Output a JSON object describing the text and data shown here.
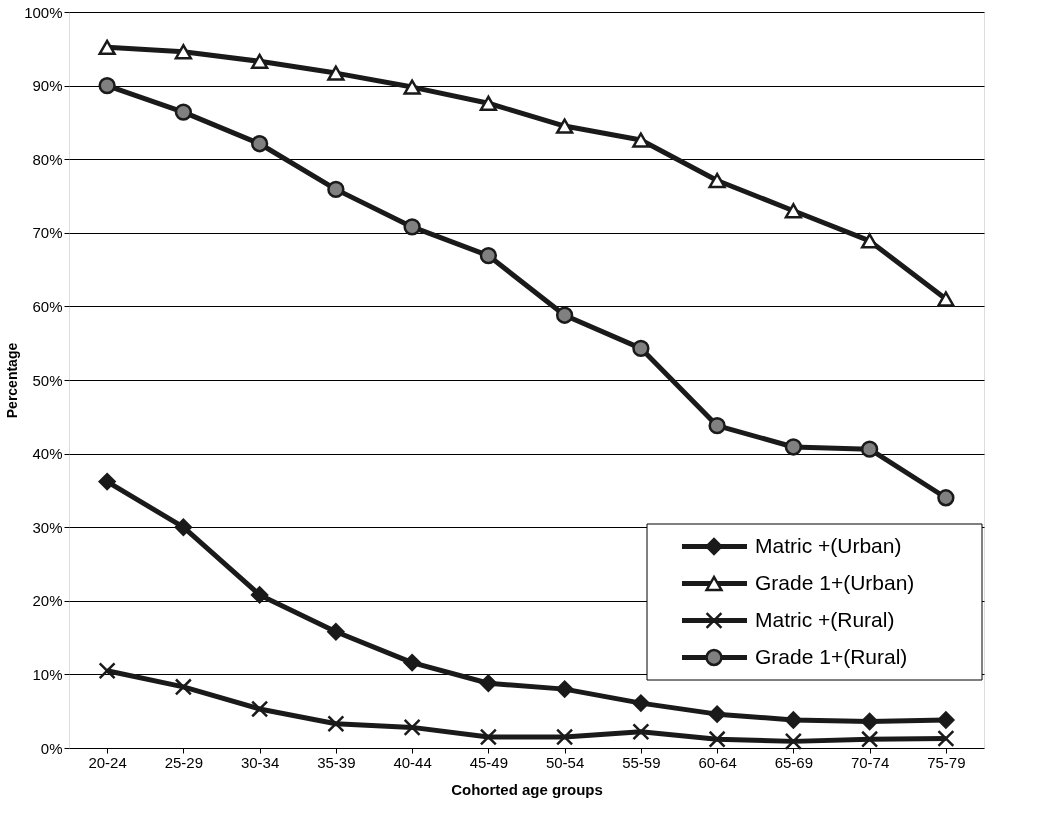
{
  "chart_data": {
    "type": "line",
    "xlabel": "Cohorted age groups",
    "ylabel": "Percentage",
    "categories": [
      "20-24",
      "25-29",
      "30-34",
      "35-39",
      "40-44",
      "45-49",
      "50-54",
      "55-59",
      "60-64",
      "65-69",
      "70-74",
      "75-79"
    ],
    "series": [
      {
        "name": "Matric +(Urban)",
        "color": "#1a1a1a",
        "marker": "diamond",
        "values": [
          36.2,
          30.0,
          20.8,
          15.8,
          11.6,
          8.8,
          8.0,
          6.1,
          4.6,
          3.8,
          3.6,
          3.8
        ]
      },
      {
        "name": "Grade 1+(Urban)",
        "color": "#1a1a1a",
        "marker": "triangle",
        "values": [
          95.2,
          94.6,
          93.3,
          91.7,
          89.8,
          87.6,
          84.5,
          82.6,
          77.1,
          73.0,
          68.9,
          61.0
        ]
      },
      {
        "name": "Matric +(Rural)",
        "color": "#1a1a1a",
        "marker": "cross",
        "values": [
          10.5,
          8.3,
          5.3,
          3.3,
          2.8,
          1.5,
          1.5,
          2.2,
          1.2,
          0.9,
          1.2,
          1.3
        ]
      },
      {
        "name": "Grade 1+(Rural)",
        "color": "#1a1a1a",
        "marker": "circle",
        "values": [
          90.0,
          86.4,
          82.1,
          75.9,
          70.8,
          66.9,
          58.8,
          54.3,
          43.8,
          40.9,
          40.6,
          34.0
        ]
      }
    ],
    "ylim": [
      0,
      100
    ],
    "yticks": [
      {
        "value": 0,
        "label": "0%"
      },
      {
        "value": 10,
        "label": "10%"
      },
      {
        "value": 20,
        "label": "20%"
      },
      {
        "value": 30,
        "label": "30%"
      },
      {
        "value": 40,
        "label": "40%"
      },
      {
        "value": 50,
        "label": "50%"
      },
      {
        "value": 60,
        "label": "60%"
      },
      {
        "value": 70,
        "label": "70%"
      },
      {
        "value": 80,
        "label": "80%"
      },
      {
        "value": 90,
        "label": "90%"
      },
      {
        "value": 100,
        "label": "100%"
      }
    ],
    "grid": "y",
    "legend": "bottom right",
    "line_style": "solid"
  }
}
